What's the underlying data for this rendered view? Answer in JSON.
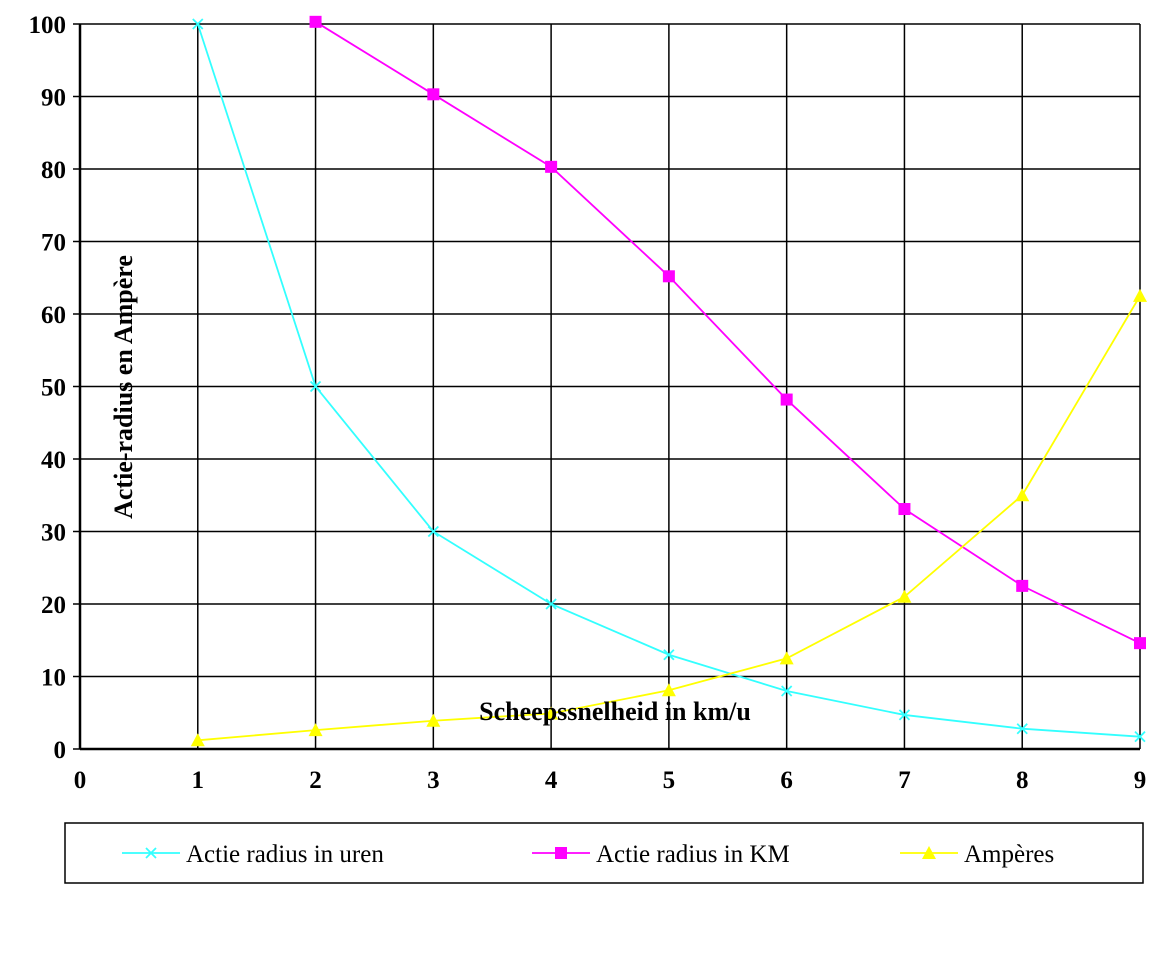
{
  "chart_data": {
    "type": "line",
    "xlabel": "Scheepssnelheid in km/u",
    "ylabel": "Actie-radius en Ampère",
    "xlim": [
      0,
      9
    ],
    "ylim": [
      0,
      100
    ],
    "xticks": [
      0,
      1,
      2,
      3,
      4,
      5,
      6,
      7,
      8,
      9
    ],
    "yticks": [
      0,
      10,
      20,
      30,
      40,
      50,
      60,
      70,
      80,
      90,
      100
    ],
    "grid": true,
    "legend_position": "bottom",
    "series": [
      {
        "name": "Actie radius in uren",
        "color": "#33FFFF",
        "marker": "x",
        "x": [
          1,
          2,
          3,
          4,
          5,
          6,
          7,
          8,
          9
        ],
        "y": [
          100,
          50,
          30,
          20,
          13,
          8,
          4.7,
          2.8,
          1.7
        ]
      },
      {
        "name": "Actie radius in KM",
        "color": "#FF00FF",
        "marker": "square",
        "x": [
          2,
          3,
          4,
          5,
          6,
          7,
          8,
          9
        ],
        "y": [
          100.3,
          90.3,
          80.3,
          65.2,
          48.2,
          33.1,
          22.5,
          14.6
        ]
      },
      {
        "name": "Ampères",
        "color": "#FFFF00",
        "marker": "triangle",
        "x": [
          1,
          2,
          3,
          4,
          5,
          6,
          7,
          8,
          9
        ],
        "y": [
          1.2,
          2.6,
          3.9,
          4.9,
          8.1,
          12.5,
          21,
          35,
          62.5
        ]
      }
    ]
  }
}
